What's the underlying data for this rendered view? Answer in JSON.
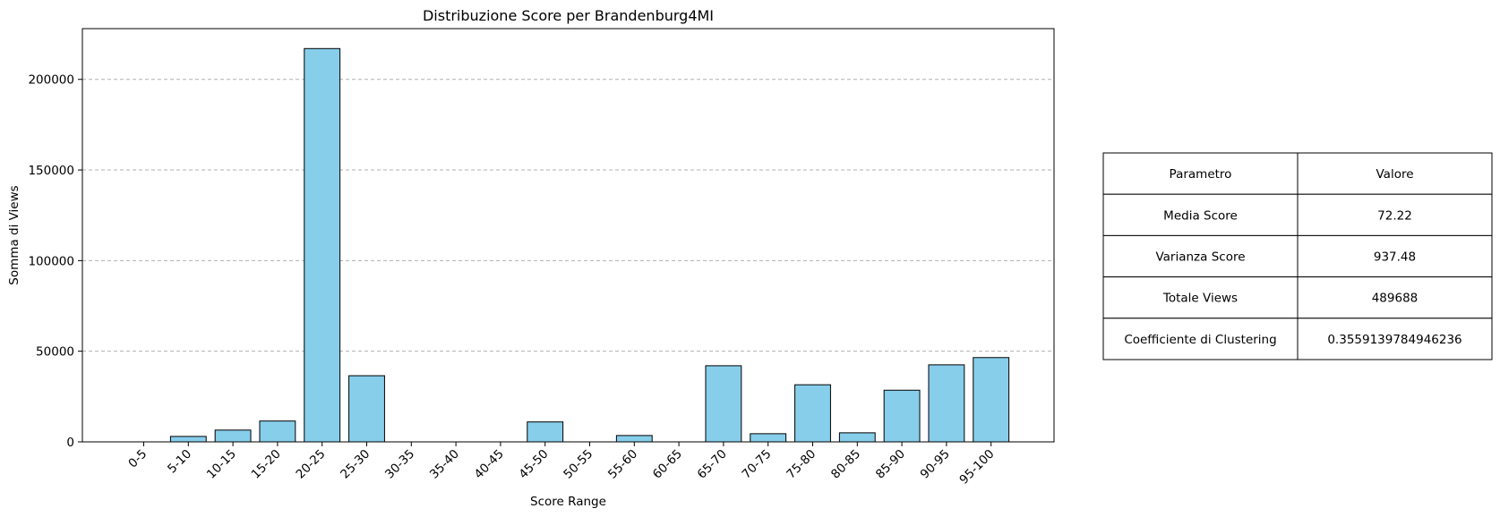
{
  "chart_data": {
    "type": "bar",
    "title": "Distribuzione Score per Brandenburg4MI",
    "xlabel": "Score Range",
    "ylabel": "Somma di Views",
    "categories": [
      "0-5",
      "5-10",
      "10-15",
      "15-20",
      "20-25",
      "25-30",
      "30-35",
      "35-40",
      "40-45",
      "45-50",
      "50-55",
      "55-60",
      "60-65",
      "65-70",
      "70-75",
      "75-80",
      "80-85",
      "85-90",
      "90-95",
      "95-100"
    ],
    "values": [
      0,
      3000,
      6500,
      11500,
      217000,
      36500,
      0,
      0,
      0,
      11000,
      0,
      3500,
      0,
      42000,
      4500,
      31500,
      5000,
      28500,
      42500,
      46500
    ],
    "ylim": [
      0,
      228000
    ],
    "yticks": [
      0,
      50000,
      100000,
      150000,
      200000
    ],
    "grid": "y-dashed",
    "bar_color": "#87ceeb",
    "bar_edge_color": "#000000",
    "grid_color": "#b0b0b0"
  },
  "table": {
    "header": [
      "Parametro",
      "Valore"
    ],
    "rows": [
      [
        "Media Score",
        "72.22"
      ],
      [
        "Varianza Score",
        "937.48"
      ],
      [
        "Totale Views",
        "489688"
      ],
      [
        "Coefficiente di Clustering",
        "0.3559139784946236"
      ]
    ]
  }
}
